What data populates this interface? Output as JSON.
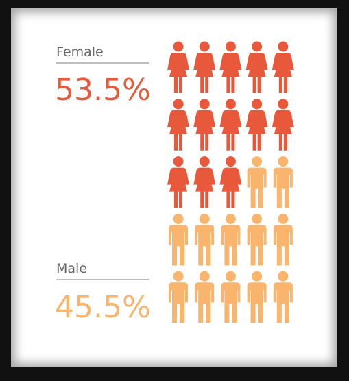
{
  "chart_data": {
    "type": "pictogram",
    "series": [
      {
        "name": "Female",
        "color": "#e8583b",
        "values": [
          53.5
        ],
        "value_labels": [
          "53.5%"
        ]
      },
      {
        "name": "Male",
        "color": "#f9b46e",
        "values": [
          45.5
        ],
        "value_labels": [
          "45.5%"
        ]
      }
    ]
  }
}
